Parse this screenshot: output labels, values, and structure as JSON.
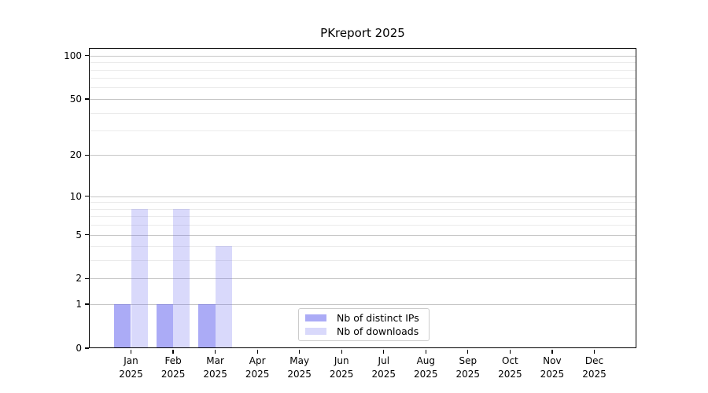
{
  "title": "PKreport 2025",
  "legend": {
    "items": [
      {
        "label": "Nb of distinct IPs",
        "fill": "rgba(102,102,238,0.55)"
      },
      {
        "label": "Nb of downloads",
        "fill": "rgba(102,102,238,0.25)"
      }
    ]
  },
  "axes": {
    "y_tick_labels": [
      "0",
      "1",
      "2",
      "5",
      "10",
      "20",
      "50",
      "100"
    ],
    "x_tick_year": "2025"
  },
  "chart_data": {
    "type": "bar",
    "title": "PKreport 2025",
    "categories": [
      "Jan 2025",
      "Feb 2025",
      "Mar 2025",
      "Apr 2025",
      "May 2025",
      "Jun 2025",
      "Jul 2025",
      "Aug 2025",
      "Sep 2025",
      "Oct 2025",
      "Nov 2025",
      "Dec 2025"
    ],
    "x_tick_months": [
      "Jan",
      "Feb",
      "Mar",
      "Apr",
      "May",
      "Jun",
      "Jul",
      "Aug",
      "Sep",
      "Oct",
      "Nov",
      "Dec"
    ],
    "x_tick_year": "2025",
    "series": [
      {
        "name": "Nb of distinct IPs",
        "fill": "rgba(102,102,238,0.55)",
        "values": [
          1,
          1,
          1,
          0,
          0,
          0,
          0,
          0,
          0,
          0,
          0,
          0
        ]
      },
      {
        "name": "Nb of downloads",
        "fill": "rgba(102,102,238,0.25)",
        "values": [
          8,
          8,
          4,
          0,
          0,
          0,
          0,
          0,
          0,
          0,
          0,
          0
        ]
      }
    ],
    "yscale": "log1p",
    "ylim": [
      0,
      113
    ],
    "y_ticks": [
      0,
      1,
      2,
      5,
      10,
      20,
      50,
      100
    ],
    "y_minor_gridlines": [
      3,
      4,
      6,
      7,
      8,
      9,
      30,
      40,
      60,
      70,
      80,
      90
    ],
    "grid": true,
    "legend_position": "lower center",
    "colors": {
      "major_grid": "#c6c6c6",
      "minor_grid": "#ebebeb",
      "spine": "#000000",
      "bar_base": "#6666ee"
    }
  }
}
